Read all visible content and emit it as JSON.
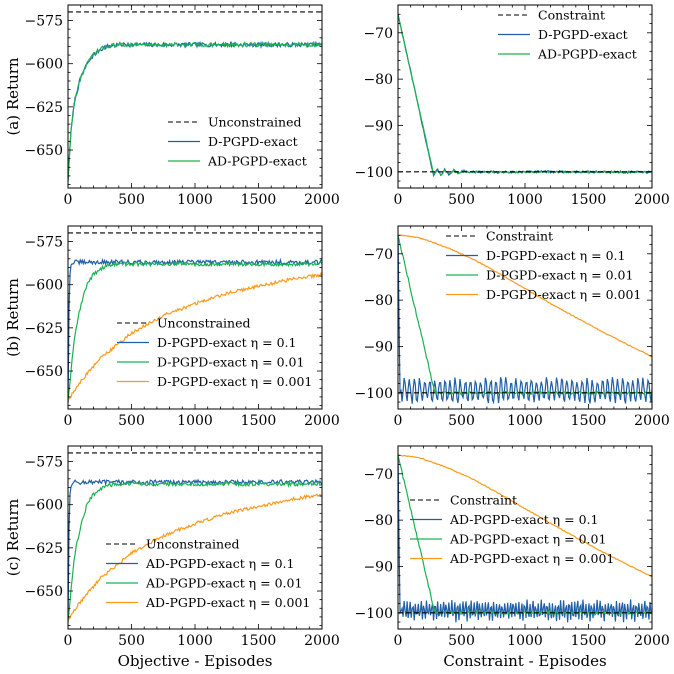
{
  "colors": {
    "d_pgpd": "#1f5fa8",
    "ad_pgpd": "#19b34f",
    "orange": "#ff9a1a",
    "constraint_line": "#000000"
  },
  "chart_data": [
    {
      "id": "a-objective",
      "type": "line",
      "ylabel": "(a) Return",
      "xlabel": "",
      "xlim": [
        0,
        2000
      ],
      "ylim": [
        -672,
        -566
      ],
      "xticks": [
        0,
        500,
        1000,
        1500,
        2000
      ],
      "yticks": [
        -650,
        -625,
        -600,
        -575
      ],
      "legend_loc": "lower-right",
      "hline": {
        "name": "Unconstrained",
        "y": -570
      },
      "series": [
        {
          "name": "D-PGPD-exact",
          "color": "#1f5fa8",
          "x": [
            0,
            20,
            50,
            100,
            150,
            200,
            250,
            300,
            400,
            600,
            1000,
            1500,
            2000
          ],
          "y": [
            -668,
            -642,
            -622,
            -608,
            -600,
            -595,
            -592,
            -590,
            -589,
            -589,
            -589,
            -589,
            -589
          ],
          "noise": 1.2
        },
        {
          "name": "AD-PGPD-exact",
          "color": "#19b34f",
          "x": [
            0,
            20,
            50,
            100,
            150,
            200,
            250,
            300,
            400,
            600,
            1000,
            1500,
            2000
          ],
          "y": [
            -668,
            -642,
            -622,
            -608,
            -600,
            -595,
            -592,
            -590,
            -589,
            -589,
            -589,
            -589,
            -589
          ],
          "noise": 1.2
        }
      ]
    },
    {
      "id": "a-constraint",
      "type": "line",
      "ylabel": "",
      "xlabel": "",
      "xlim": [
        0,
        2000
      ],
      "ylim": [
        -103.5,
        -64
      ],
      "xticks": [
        0,
        500,
        1000,
        1500,
        2000
      ],
      "yticks": [
        -100,
        -90,
        -80,
        -70
      ],
      "legend_loc": "upper-right",
      "hline": {
        "name": "Constraint",
        "y": -100
      },
      "series": [
        {
          "name": "D-PGPD-exact",
          "color": "#1f5fa8",
          "x": [
            0,
            280,
            310,
            340,
            370,
            400,
            440,
            480,
            520,
            560,
            600,
            800,
            1200,
            2000
          ],
          "y": [
            -66,
            -100.8,
            -99.4,
            -100.9,
            -99.5,
            -100.6,
            -99.6,
            -100.4,
            -99.7,
            -100.3,
            -100,
            -100.1,
            -100,
            -100.1
          ],
          "noise": 0.25
        },
        {
          "name": "AD-PGPD-exact",
          "color": "#19b34f",
          "x": [
            0,
            280,
            310,
            340,
            370,
            400,
            440,
            480,
            520,
            560,
            600,
            800,
            1200,
            2000
          ],
          "y": [
            -66,
            -100.5,
            -99.6,
            -100.6,
            -99.7,
            -100.4,
            -99.8,
            -100.3,
            -99.8,
            -100.2,
            -100,
            -100.1,
            -100,
            -100.1
          ],
          "noise": 0.2
        }
      ]
    },
    {
      "id": "b-objective",
      "type": "line",
      "ylabel": "(b) Return",
      "xlabel": "",
      "xlim": [
        0,
        2000
      ],
      "ylim": [
        -672,
        -566
      ],
      "xticks": [
        0,
        500,
        1000,
        1500,
        2000
      ],
      "yticks": [
        -650,
        -625,
        -600,
        -575
      ],
      "legend_loc": "lower-center",
      "hline": {
        "name": "Unconstrained",
        "y": -570
      },
      "series": [
        {
          "name": "D-PGPD-exact η = 0.1",
          "color": "#1f5fa8",
          "x": [
            0,
            10,
            20,
            40,
            2000
          ],
          "y": [
            -668,
            -600,
            -589,
            -587,
            -587
          ],
          "noise": 1.3
        },
        {
          "name": "D-PGPD-exact η = 0.01",
          "color": "#19b34f",
          "x": [
            0,
            50,
            100,
            150,
            200,
            250,
            300,
            400,
            2000
          ],
          "y": [
            -668,
            -630,
            -612,
            -600,
            -594,
            -591,
            -589,
            -588,
            -588
          ],
          "noise": 1.1
        },
        {
          "name": "D-PGPD-exact η = 0.001",
          "color": "#ff9a1a",
          "x": [
            0,
            100,
            250,
            500,
            750,
            1000,
            1250,
            1500,
            1750,
            2000
          ],
          "y": [
            -667,
            -656,
            -643,
            -628,
            -618,
            -611,
            -605,
            -601,
            -597,
            -594
          ],
          "noise": 1.0
        }
      ]
    },
    {
      "id": "b-constraint",
      "type": "line",
      "ylabel": "",
      "xlabel": "",
      "xlim": [
        0,
        2000
      ],
      "ylim": [
        -103.5,
        -64
      ],
      "xticks": [
        0,
        500,
        1000,
        1500,
        2000
      ],
      "yticks": [
        -100,
        -90,
        -80,
        -70
      ],
      "legend_loc": "upper-right",
      "hline": {
        "name": "Constraint",
        "y": -100
      },
      "series": [
        {
          "name": "D-PGPD-exact η = 0.1",
          "color": "#1f5fa8",
          "x": [
            0,
            15,
            25,
            2000
          ],
          "y": [
            -66,
            -100,
            -99.5,
            -99.5
          ],
          "osc": 2.3,
          "period": 40
        },
        {
          "name": "D-PGPD-exact η = 0.01",
          "color": "#19b34f",
          "x": [
            0,
            290,
            330,
            2000
          ],
          "y": [
            -66,
            -100,
            -100,
            -100
          ],
          "noise": 0.3
        },
        {
          "name": "D-PGPD-exact η = 0.001",
          "color": "#ff9a1a",
          "x": [
            0,
            100,
            200,
            400,
            600,
            800,
            1000,
            1200,
            1400,
            1600,
            1800,
            2000
          ],
          "y": [
            -66,
            -66.2,
            -66.8,
            -68.8,
            -71.3,
            -74.3,
            -77.5,
            -80.7,
            -83.7,
            -86.7,
            -89.5,
            -92.2
          ],
          "noise": 0.1
        }
      ]
    },
    {
      "id": "c-objective",
      "type": "line",
      "ylabel": "(c) Return",
      "xlabel": "Objective - Episodes",
      "xlim": [
        0,
        2000
      ],
      "ylim": [
        -672,
        -566
      ],
      "xticks": [
        0,
        500,
        1000,
        1500,
        2000
      ],
      "yticks": [
        -650,
        -625,
        -600,
        -575
      ],
      "legend_loc": "lower-center",
      "hline": {
        "name": "Unconstrained",
        "y": -570
      },
      "series": [
        {
          "name": "AD-PGPD-exact η = 0.1",
          "color": "#1f5fa8",
          "x": [
            0,
            10,
            20,
            40,
            2000
          ],
          "y": [
            -668,
            -600,
            -589,
            -587,
            -587
          ],
          "noise": 1.3
        },
        {
          "name": "AD-PGPD-exact η = 0.01",
          "color": "#19b34f",
          "x": [
            0,
            50,
            100,
            150,
            200,
            250,
            300,
            400,
            2000
          ],
          "y": [
            -668,
            -630,
            -612,
            -600,
            -594,
            -591,
            -589,
            -588,
            -588
          ],
          "noise": 1.1
        },
        {
          "name": "AD-PGPD-exact η = 0.001",
          "color": "#ff9a1a",
          "x": [
            0,
            100,
            250,
            500,
            750,
            1000,
            1250,
            1500,
            1750,
            2000
          ],
          "y": [
            -667,
            -656,
            -643,
            -628,
            -618,
            -611,
            -605,
            -601,
            -597,
            -594
          ],
          "noise": 1.0
        }
      ]
    },
    {
      "id": "c-constraint",
      "type": "line",
      "ylabel": "",
      "xlabel": "Constraint - Episodes",
      "xlim": [
        0,
        2000
      ],
      "ylim": [
        -103.5,
        -64
      ],
      "xticks": [
        0,
        500,
        1000,
        1500,
        2000
      ],
      "yticks": [
        -100,
        -90,
        -80,
        -70
      ],
      "legend_loc": "center-left",
      "hline": {
        "name": "Constraint",
        "y": -100
      },
      "series": [
        {
          "name": "AD-PGPD-exact η = 0.1",
          "color": "#1f5fa8",
          "x": [
            0,
            15,
            25,
            2000
          ],
          "y": [
            -66,
            -100,
            -99.5,
            -99.5
          ],
          "osc": 2.0,
          "period": 22
        },
        {
          "name": "AD-PGPD-exact η = 0.01",
          "color": "#19b34f",
          "x": [
            0,
            290,
            330,
            2000
          ],
          "y": [
            -66,
            -100,
            -100,
            -100
          ],
          "noise": 0.3
        },
        {
          "name": "AD-PGPD-exact η = 0.001",
          "color": "#ff9a1a",
          "x": [
            0,
            100,
            200,
            400,
            600,
            800,
            1000,
            1200,
            1400,
            1600,
            1800,
            2000
          ],
          "y": [
            -66,
            -66.2,
            -66.8,
            -68.8,
            -71.3,
            -74.3,
            -77.5,
            -80.7,
            -83.7,
            -86.7,
            -89.5,
            -92.2
          ],
          "noise": 0.1
        }
      ]
    }
  ]
}
